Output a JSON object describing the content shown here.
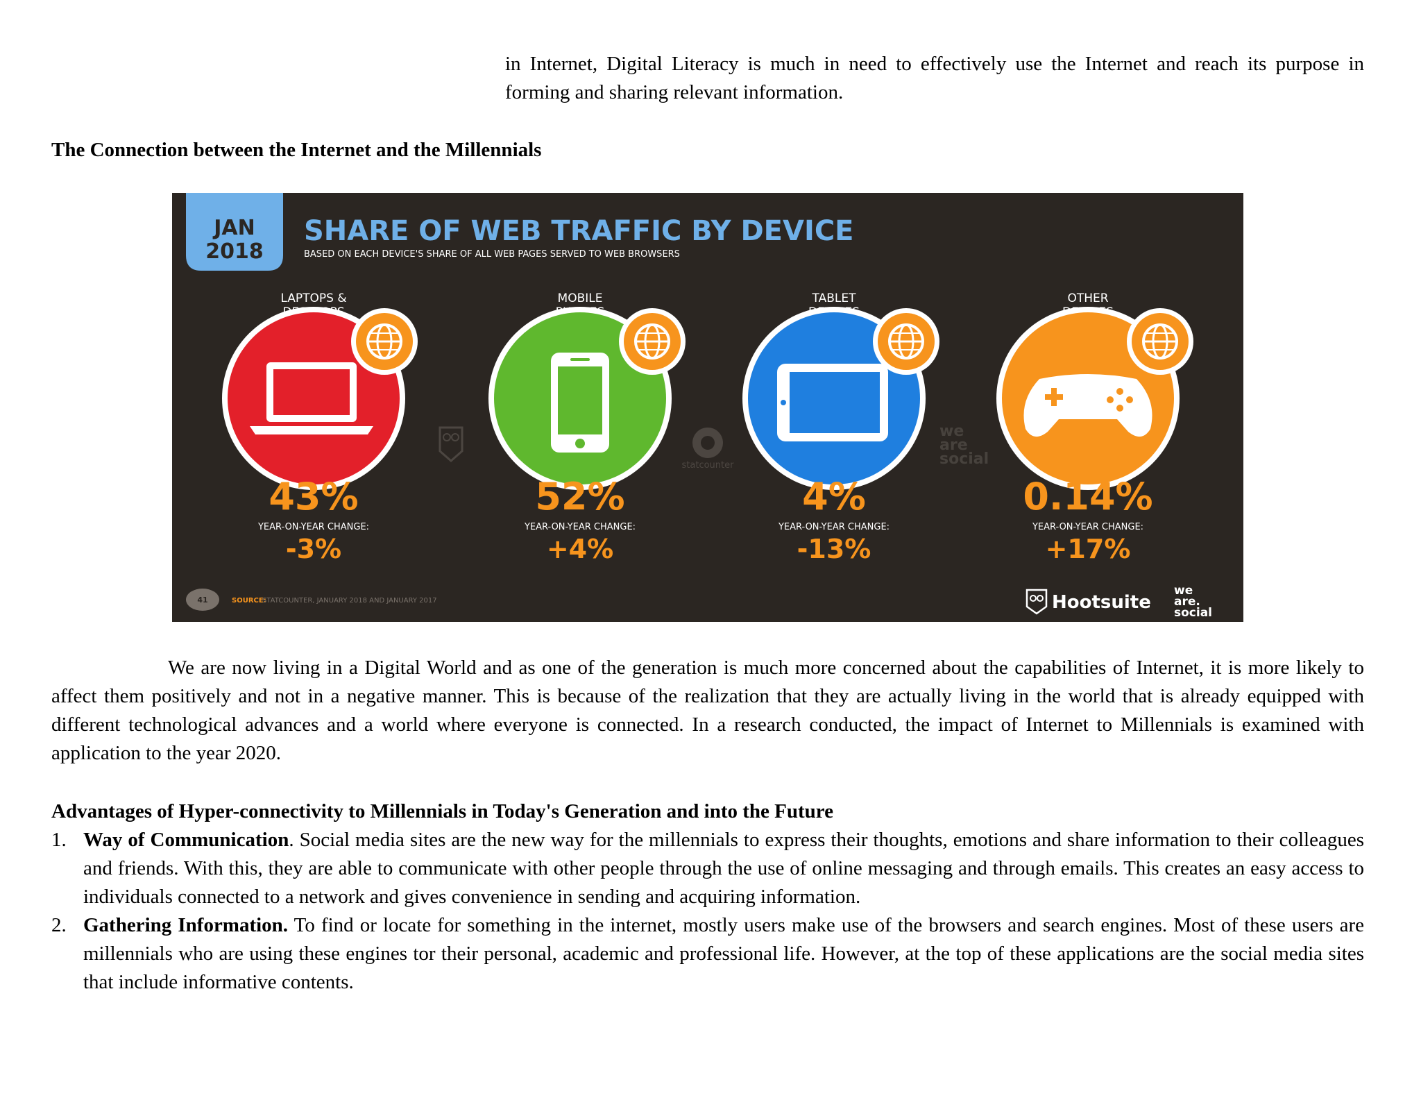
{
  "intro_paragraph": "in Internet, Digital Literacy is much in need to effectively use the Internet and reach its purpose in forming and sharing relevant information.",
  "section_heading": "The Connection between the Internet and the Millennials",
  "infographic": {
    "date_month": "JAN",
    "date_year": "2018",
    "title": "SHARE OF WEB TRAFFIC BY DEVICE",
    "subtitle": "BASED ON EACH DEVICE'S SHARE OF ALL WEB PAGES SERVED TO WEB BROWSERS",
    "yoy_label": "YEAR-ON-YEAR CHANGE:",
    "devices": [
      {
        "label_line1": "LAPTOPS &",
        "label_line2": "DESKTOPS",
        "share": "43%",
        "change": "-3%",
        "color": "#e3202a",
        "icon": "laptop-icon"
      },
      {
        "label_line1": "MOBILE",
        "label_line2": "PHONES",
        "share": "52%",
        "change": "+4%",
        "color": "#5fb82e",
        "icon": "mobile-phone-icon"
      },
      {
        "label_line1": "TABLET",
        "label_line2": "DEVICES",
        "share": "4%",
        "change": "-13%",
        "color": "#1f7fdf",
        "icon": "tablet-icon"
      },
      {
        "label_line1": "OTHER",
        "label_line2": "DEVICES",
        "share": "0.14%",
        "change": "+17%",
        "color": "#f7941d",
        "icon": "game-controller-icon"
      }
    ],
    "page_number": "41",
    "source_label": "SOURCE:",
    "source_text": "STATCOUNTER, JANUARY 2018 AND JANUARY 2017",
    "watermark_statcounter": "statcounter",
    "watermark_social_lines": [
      "we",
      "are",
      "social"
    ],
    "brand_hootsuite": "Hootsuite",
    "brand_social_lines": [
      "we",
      "are.",
      "social"
    ],
    "accent_color": "#f7941d",
    "date_badge_color": "#6fb0e8",
    "title_color": "#6fb0e8",
    "background_color": "#2b2622"
  },
  "body_paragraph": "We are now living in a Digital World and as one of the generation is much more concerned about the capabilities of Internet, it is more likely to affect them positively and not in a negative manner. This is because of the realization that they are actually living in the world that is already equipped with different technological advances and a world where everyone is connected. In a research conducted, the impact of Internet to Millennials is examined with application to the year 2020.",
  "advantages_heading": "Advantages of Hyper-connectivity to Millennials in Today's Generation and into the Future",
  "advantages": [
    {
      "number": "1.",
      "title": "Way of Communication",
      "title_suffix": ".",
      "text": " Social media sites are the new way for the millennials to express their thoughts, emotions and share information to their colleagues and friends. With this, they are able to communicate with other people through the use of online messaging and through emails. This creates an easy access to individuals connected to a network and gives convenience in sending and acquiring information."
    },
    {
      "number": "2.",
      "title": "Gathering Information.",
      "title_suffix": "",
      "text": " To find or locate for something in the internet, mostly users make use of the browsers and search engines. Most of these users are millennials who are using these engines tor their personal, academic and professional life. However, at the top of these applications are the social media sites that include informative contents."
    }
  ]
}
